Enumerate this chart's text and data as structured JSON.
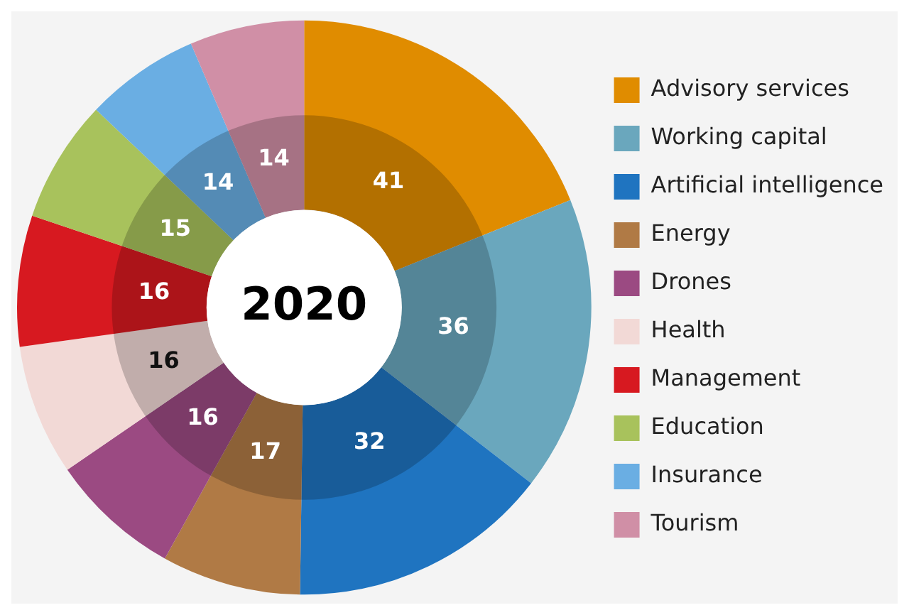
{
  "chart_data": {
    "type": "donut",
    "title": "2020",
    "categories": [
      "Advisory services",
      "Working capital",
      "Artificial intelligence",
      "Energy",
      "Drones",
      "Health",
      "Management",
      "Education",
      "Insurance",
      "Tourism"
    ],
    "values": [
      41,
      36,
      32,
      17,
      16,
      16,
      16,
      15,
      14,
      14
    ],
    "colors": [
      "#e08c00",
      "#6aa7bd",
      "#1f74c0",
      "#b07a45",
      "#9b4a82",
      "#f2d9d6",
      "#d71920",
      "#a8c25c",
      "#6aaee3",
      "#d08fa6"
    ],
    "data_labels": true,
    "legend": "right"
  }
}
